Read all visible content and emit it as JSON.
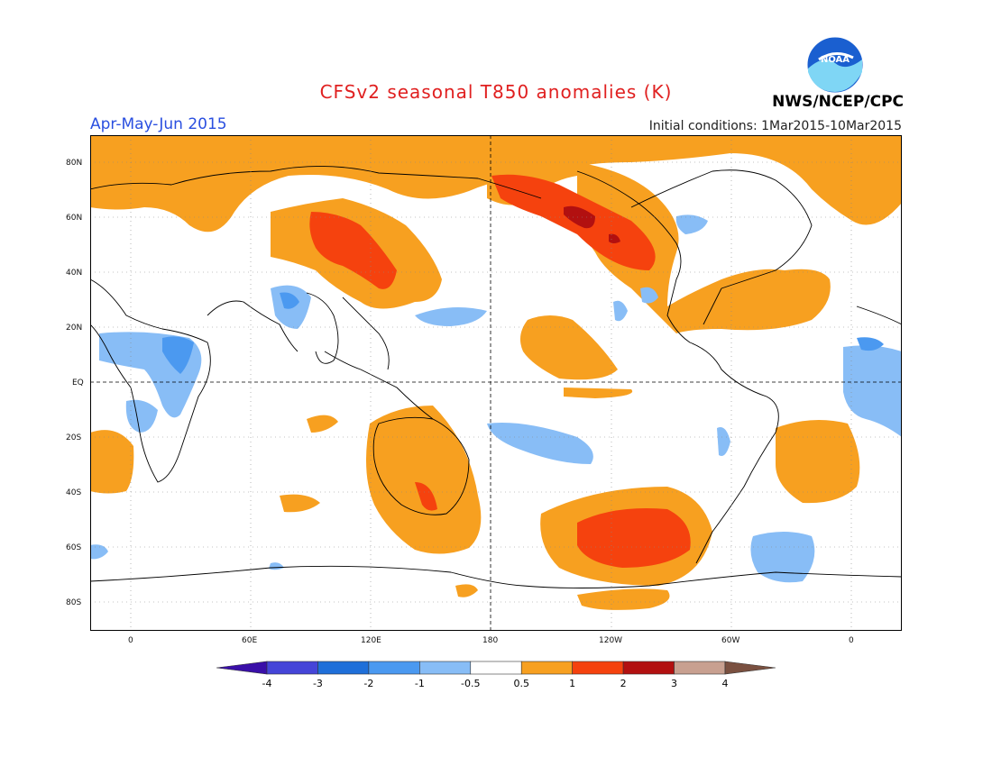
{
  "header": {
    "title": "CFSv2 seasonal T850 anomalies (K)",
    "period": "Apr-May-Jun 2015",
    "initial_conditions": "Initial conditions: 1Mar2015-10Mar2015",
    "organization": "NWS/NCEP/CPC",
    "logo_text": "NOAA"
  },
  "axes": {
    "lat_labels": [
      "80N",
      "60N",
      "40N",
      "20N",
      "EQ",
      "20S",
      "40S",
      "60S",
      "80S"
    ],
    "lon_labels": [
      "0",
      "60E",
      "120E",
      "180",
      "120W",
      "60W",
      "0"
    ]
  },
  "colorbar": {
    "labels": [
      "-4",
      "-3",
      "-2",
      "-1",
      "-0.5",
      "0.5",
      "1",
      "2",
      "3",
      "4"
    ],
    "colors": [
      "#3a0fa8",
      "#4545d8",
      "#1f6fd9",
      "#4b99f0",
      "#88bdf6",
      "#ffffff",
      "#f7a020",
      "#f5420e",
      "#b21010",
      "#c8a090",
      "#7a5040"
    ]
  }
}
